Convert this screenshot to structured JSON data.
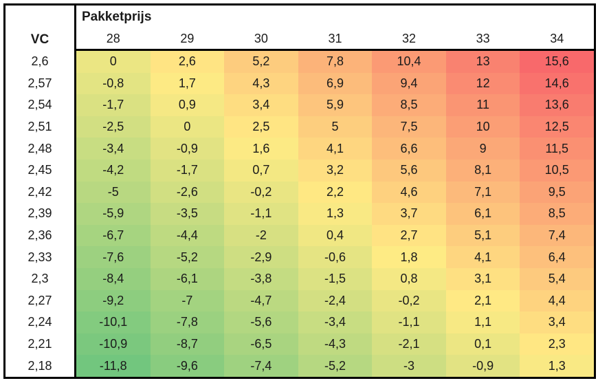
{
  "title": "Pakketprijs",
  "corner_label": "VC",
  "columns": [
    "28",
    "29",
    "30",
    "31",
    "32",
    "33",
    "34"
  ],
  "rows": [
    {
      "label": "2,6",
      "values": [
        "0",
        "2,6",
        "5,2",
        "7,8",
        "10,4",
        "13",
        "15,6"
      ]
    },
    {
      "label": "2,57",
      "values": [
        "-0,8",
        "1,7",
        "4,3",
        "6,9",
        "9,4",
        "12",
        "14,6"
      ]
    },
    {
      "label": "2,54",
      "values": [
        "-1,7",
        "0,9",
        "3,4",
        "5,9",
        "8,5",
        "11",
        "13,6"
      ]
    },
    {
      "label": "2,51",
      "values": [
        "-2,5",
        "0",
        "2,5",
        "5",
        "7,5",
        "10",
        "12,5"
      ]
    },
    {
      "label": "2,48",
      "values": [
        "-3,4",
        "-0,9",
        "1,6",
        "4,1",
        "6,6",
        "9",
        "11,5"
      ]
    },
    {
      "label": "2,45",
      "values": [
        "-4,2",
        "-1,7",
        "0,7",
        "3,2",
        "5,6",
        "8,1",
        "10,5"
      ]
    },
    {
      "label": "2,42",
      "values": [
        "-5",
        "-2,6",
        "-0,2",
        "2,2",
        "4,6",
        "7,1",
        "9,5"
      ]
    },
    {
      "label": "2,39",
      "values": [
        "-5,9",
        "-3,5",
        "-1,1",
        "1,3",
        "3,7",
        "6,1",
        "8,5"
      ]
    },
    {
      "label": "2,36",
      "values": [
        "-6,7",
        "-4,4",
        "-2",
        "0,4",
        "2,7",
        "5,1",
        "7,4"
      ]
    },
    {
      "label": "2,33",
      "values": [
        "-7,6",
        "-5,2",
        "-2,9",
        "-0,6",
        "1,8",
        "4,1",
        "6,4"
      ]
    },
    {
      "label": "2,3",
      "values": [
        "-8,4",
        "-6,1",
        "-3,8",
        "-1,5",
        "0,8",
        "3,1",
        "5,4"
      ]
    },
    {
      "label": "2,27",
      "values": [
        "-9,2",
        "-7",
        "-4,7",
        "-2,4",
        "-0,2",
        "2,1",
        "4,4"
      ]
    },
    {
      "label": "2,24",
      "values": [
        "-10,1",
        "-7,8",
        "-5,6",
        "-3,4",
        "-1,1",
        "1,1",
        "3,4"
      ]
    },
    {
      "label": "2,21",
      "values": [
        "-10,9",
        "-8,7",
        "-6,5",
        "-4,3",
        "-2,1",
        "0,1",
        "2,3"
      ]
    },
    {
      "label": "2,18",
      "values": [
        "-11,8",
        "-9,6",
        "-7,4",
        "-5,2",
        "-3",
        "-0,9",
        "1,3"
      ]
    }
  ],
  "colors": {
    "scale_min_color": "#72C67E",
    "scale_mid_color": "#FFEB84",
    "scale_max_color": "#F8696B",
    "border_color": "#000000",
    "text_color": "#1b1b1b",
    "background": "#ffffff"
  },
  "scale": {
    "min": -11.8,
    "mid": 1.9,
    "max": 15.6
  },
  "chart_data": {
    "type": "heatmap",
    "title": "Pakketprijs",
    "xlabel": "Pakketprijs",
    "ylabel": "VC",
    "x": [
      28,
      29,
      30,
      31,
      32,
      33,
      34
    ],
    "y": [
      2.6,
      2.57,
      2.54,
      2.51,
      2.48,
      2.45,
      2.42,
      2.39,
      2.36,
      2.33,
      2.3,
      2.27,
      2.24,
      2.21,
      2.18
    ],
    "values": [
      [
        0,
        2.6,
        5.2,
        7.8,
        10.4,
        13,
        15.6
      ],
      [
        -0.8,
        1.7,
        4.3,
        6.9,
        9.4,
        12,
        14.6
      ],
      [
        -1.7,
        0.9,
        3.4,
        5.9,
        8.5,
        11,
        13.6
      ],
      [
        -2.5,
        0,
        2.5,
        5,
        7.5,
        10,
        12.5
      ],
      [
        -3.4,
        -0.9,
        1.6,
        4.1,
        6.6,
        9,
        11.5
      ],
      [
        -4.2,
        -1.7,
        0.7,
        3.2,
        5.6,
        8.1,
        10.5
      ],
      [
        -5,
        -2.6,
        -0.2,
        2.2,
        4.6,
        7.1,
        9.5
      ],
      [
        -5.9,
        -3.5,
        -1.1,
        1.3,
        3.7,
        6.1,
        8.5
      ],
      [
        -6.7,
        -4.4,
        -2,
        0.4,
        2.7,
        5.1,
        7.4
      ],
      [
        -7.6,
        -5.2,
        -2.9,
        -0.6,
        1.8,
        4.1,
        6.4
      ],
      [
        -8.4,
        -6.1,
        -3.8,
        -1.5,
        0.8,
        3.1,
        5.4
      ],
      [
        -9.2,
        -7,
        -4.7,
        -2.4,
        -0.2,
        2.1,
        4.4
      ],
      [
        -10.1,
        -7.8,
        -5.6,
        -3.4,
        -1.1,
        1.1,
        3.4
      ],
      [
        -10.9,
        -8.7,
        -6.5,
        -4.3,
        -2.1,
        0.1,
        2.3
      ],
      [
        -11.8,
        -9.6,
        -7.4,
        -5.2,
        -3,
        -0.9,
        1.3
      ]
    ],
    "color_scale": {
      "min": {
        "value": -11.8,
        "color": "#72C67E"
      },
      "mid": {
        "value": 1.9,
        "color": "#FFEB84"
      },
      "max": {
        "value": 15.6,
        "color": "#F8696B"
      }
    },
    "legend": "none",
    "grid": false
  }
}
